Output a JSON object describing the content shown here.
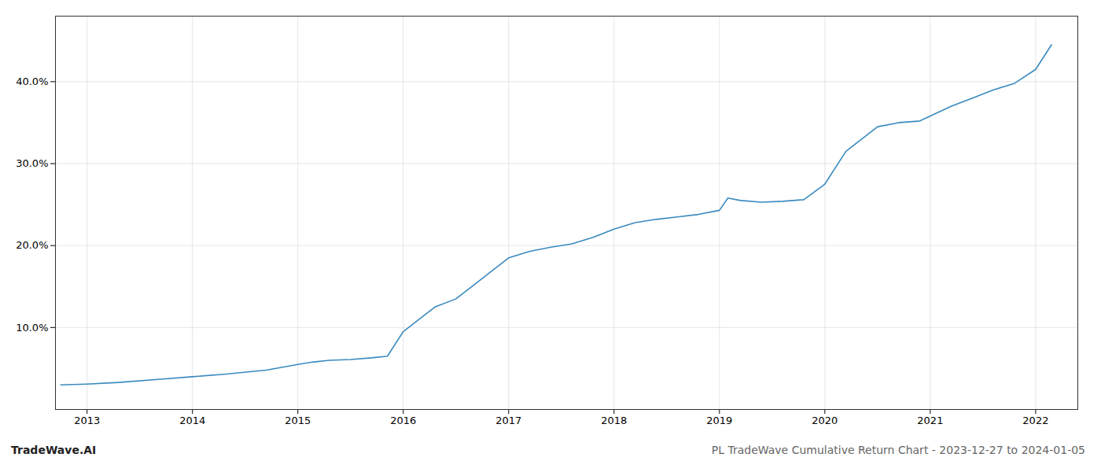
{
  "chart_data": {
    "type": "line",
    "title": "PL TradeWave Cumulative Return Chart - 2023-12-27 to 2024-01-05",
    "annotations": [
      "TradeWave.AI"
    ],
    "x": [
      2012.75,
      2013.0,
      2013.3,
      2013.7,
      2014.0,
      2014.3,
      2014.7,
      2015.0,
      2015.15,
      2015.3,
      2015.5,
      2015.7,
      2015.85,
      2016.0,
      2016.15,
      2016.3,
      2016.5,
      2016.7,
      2016.85,
      2017.0,
      2017.2,
      2017.4,
      2017.6,
      2017.8,
      2018.0,
      2018.2,
      2018.4,
      2018.6,
      2018.8,
      2019.0,
      2019.08,
      2019.2,
      2019.4,
      2019.6,
      2019.8,
      2020.0,
      2020.2,
      2020.5,
      2020.7,
      2020.9,
      2021.0,
      2021.2,
      2021.4,
      2021.6,
      2021.8,
      2022.0,
      2022.15
    ],
    "values": [
      3.0,
      3.1,
      3.3,
      3.7,
      4.0,
      4.3,
      4.8,
      5.5,
      5.8,
      6.0,
      6.1,
      6.3,
      6.5,
      9.5,
      11.0,
      12.5,
      13.5,
      15.5,
      17.0,
      18.5,
      19.3,
      19.8,
      20.2,
      21.0,
      22.0,
      22.8,
      23.2,
      23.5,
      23.8,
      24.3,
      25.8,
      25.5,
      25.3,
      25.4,
      25.6,
      27.5,
      31.5,
      34.5,
      35.0,
      35.2,
      35.8,
      37.0,
      38.0,
      39.0,
      39.8,
      41.5,
      44.5
    ],
    "color": "#3a8abf",
    "xlim": [
      2012.7,
      2022.4
    ],
    "xticks": [
      2013,
      2014,
      2015,
      2016,
      2017,
      2018,
      2019,
      2020,
      2021,
      2022
    ],
    "ylim": [
      0,
      48
    ],
    "yticks": [
      {
        "value": 10.0,
        "label": "10.0%"
      },
      {
        "value": 20.0,
        "label": "20.0%"
      },
      {
        "value": 30.0,
        "label": "30.0%"
      },
      {
        "value": 40.0,
        "label": "40.0%"
      }
    ],
    "grid": true
  }
}
